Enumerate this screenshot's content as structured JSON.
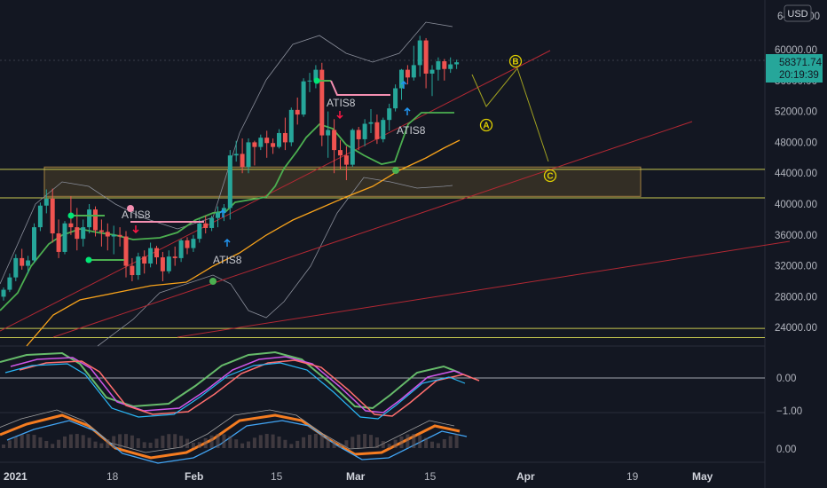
{
  "chart_data": {
    "type": "candlestick",
    "currency": "USD",
    "last_price": "58371.74",
    "countdown": "20:19:39",
    "y_axis": {
      "range": [
        20000,
        66000
      ],
      "ticks": [
        24000,
        28000,
        32000,
        36000,
        40000,
        44000,
        48000,
        52000,
        56000,
        60000
      ],
      "tick_labels": [
        "24000.00",
        "28000.00",
        "32000.00",
        "36000.00",
        "40000.00",
        "44000.00",
        "48000.00",
        "52000.00",
        "56000.00",
        "60000.00"
      ],
      "top_label": "64000.00"
    },
    "x_axis": {
      "ticks": [
        "2021",
        "18",
        "Feb",
        "15",
        "Mar",
        "15",
        "Apr",
        "19",
        "May"
      ]
    },
    "candles": [
      [
        28000,
        29200,
        27500,
        28900
      ],
      [
        28900,
        31000,
        28600,
        30500
      ],
      [
        30500,
        33500,
        30000,
        33000
      ],
      [
        33000,
        34200,
        31500,
        32000
      ],
      [
        32000,
        33300,
        31000,
        32700
      ],
      [
        32700,
        37500,
        32400,
        37000
      ],
      [
        37000,
        40200,
        36500,
        39800
      ],
      [
        39800,
        41900,
        38800,
        40700
      ],
      [
        40700,
        42000,
        35000,
        36200
      ],
      [
        36200,
        38000,
        33000,
        33800
      ],
      [
        33800,
        37800,
        33500,
        37500
      ],
      [
        37500,
        41000,
        36000,
        37000
      ],
      [
        37000,
        39500,
        34000,
        35500
      ],
      [
        35500,
        38000,
        34500,
        37000
      ],
      [
        37000,
        40000,
        36200,
        39300
      ],
      [
        39300,
        39700,
        35800,
        36600
      ],
      [
        36600,
        38000,
        34500,
        36400
      ],
      [
        36400,
        37500,
        34000,
        35800
      ],
      [
        35800,
        37200,
        33500,
        36000
      ],
      [
        36000,
        37000,
        34500,
        35800
      ],
      [
        35800,
        36500,
        30500,
        32000
      ],
      [
        32000,
        33000,
        30000,
        30800
      ],
      [
        30800,
        33700,
        30200,
        33200
      ],
      [
        33200,
        34000,
        31000,
        32300
      ],
      [
        32300,
        35000,
        31800,
        34300
      ],
      [
        34300,
        34600,
        32200,
        33100
      ],
      [
        33100,
        33800,
        30000,
        31300
      ],
      [
        31300,
        34000,
        31000,
        33200
      ],
      [
        33200,
        34500,
        32000,
        33000
      ],
      [
        33000,
        35500,
        32500,
        35300
      ],
      [
        35300,
        35700,
        33500,
        34300
      ],
      [
        34300,
        36000,
        33800,
        35500
      ],
      [
        35500,
        38000,
        35000,
        37500
      ],
      [
        37500,
        38500,
        36200,
        36900
      ],
      [
        36900,
        38500,
        36500,
        38200
      ],
      [
        38200,
        39700,
        37000,
        38900
      ],
      [
        38900,
        40000,
        37800,
        39500
      ],
      [
        39500,
        47000,
        38000,
        46300
      ],
      [
        46300,
        48200,
        45500,
        46500
      ],
      [
        46500,
        48500,
        44000,
        44800
      ],
      [
        44800,
        48500,
        44000,
        48000
      ],
      [
        48000,
        48200,
        45000,
        47400
      ],
      [
        47400,
        49000,
        47000,
        48600
      ],
      [
        48600,
        49500,
        46000,
        47900
      ],
      [
        47900,
        48500,
        46500,
        47400
      ],
      [
        47400,
        49700,
        47200,
        49200
      ],
      [
        49200,
        51200,
        47000,
        48000
      ],
      [
        48000,
        52500,
        47500,
        52200
      ],
      [
        52200,
        53800,
        50300,
        51600
      ],
      [
        51600,
        56300,
        51300,
        55900
      ],
      [
        55900,
        57000,
        54500,
        56000
      ],
      [
        56000,
        58000,
        55000,
        57400
      ],
      [
        57400,
        58300,
        47500,
        48900
      ],
      [
        48900,
        52000,
        46000,
        49600
      ],
      [
        49600,
        51000,
        44000,
        47000
      ],
      [
        47000,
        48300,
        44500,
        46300
      ],
      [
        46300,
        47500,
        43100,
        45100
      ],
      [
        45100,
        49800,
        44800,
        49600
      ],
      [
        49600,
        50000,
        47000,
        48400
      ],
      [
        48400,
        51000,
        47500,
        50400
      ],
      [
        50400,
        52300,
        49200,
        50600
      ],
      [
        50600,
        51600,
        47800,
        48400
      ],
      [
        48400,
        51200,
        48000,
        50900
      ],
      [
        50900,
        53000,
        49500,
        52400
      ],
      [
        52400,
        55500,
        52000,
        55000
      ],
      [
        55000,
        57500,
        53500,
        57400
      ],
      [
        57400,
        58000,
        55500,
        56400
      ],
      [
        56400,
        60500,
        56000,
        58000
      ],
      [
        58000,
        61800,
        56500,
        61200
      ],
      [
        61200,
        61500,
        55000,
        56900
      ],
      [
        56900,
        58000,
        54000,
        57400
      ],
      [
        57400,
        59000,
        56000,
        58500
      ],
      [
        58500,
        58800,
        56000,
        57500
      ],
      [
        57500,
        59000,
        57000,
        58100
      ],
      [
        58100,
        58700,
        57500,
        58371.74
      ]
    ],
    "indicator_labels": [
      "ATIS8",
      "ATIS8",
      "ATIS8",
      "ATIS8"
    ],
    "wave_labels": [
      "B",
      "A",
      "C"
    ],
    "oscillator1": {
      "ticks": [
        "0.00",
        "−1.00"
      ]
    },
    "oscillator2": {
      "ticks": [
        "0.00"
      ]
    },
    "colors": {
      "up": "#26a69a",
      "down": "#ef5350",
      "green_line": "#4caf50",
      "orange_line": "#f7a21b",
      "trend": "#b22833",
      "zone": "#c8c850",
      "wave": "#e0d000"
    }
  }
}
